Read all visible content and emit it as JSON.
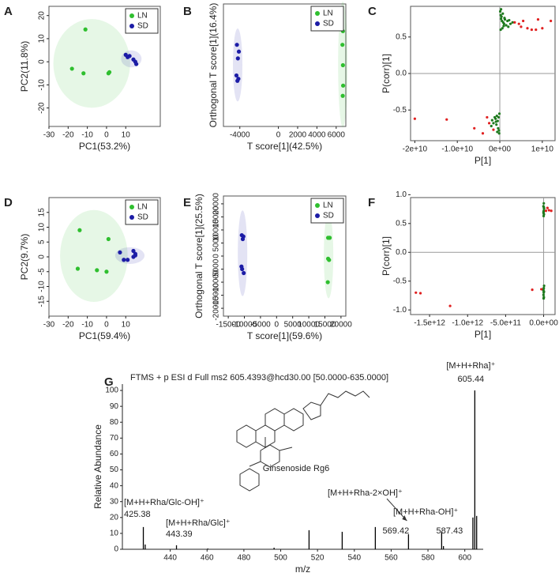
{
  "chart_data": [
    {
      "type": "scatter",
      "panel": "A",
      "xlabel": "PC1(53.2%)",
      "ylabel": "PC2(11.8%)",
      "ellipses": true,
      "legend": "upper right",
      "xlim": [
        -30,
        28
      ],
      "xticks": [
        -30,
        -20,
        -10,
        0,
        10
      ],
      "ylim": [
        -28,
        24
      ],
      "yticks": [
        20,
        10,
        0,
        -10,
        -20
      ],
      "series": [
        {
          "name": "LN",
          "color": "#2fbf2f",
          "x": [
            -11,
            -18,
            -12,
            1,
            1.5
          ],
          "values": [
            14,
            -3,
            -5,
            -5,
            -4.5
          ]
        },
        {
          "name": "SD",
          "color": "#1c1ca6",
          "x": [
            10,
            12,
            11,
            15,
            15.5,
            14
          ],
          "values": [
            3,
            2.5,
            2,
            0,
            -1,
            1
          ]
        }
      ]
    },
    {
      "type": "scatter",
      "panel": "B",
      "xlabel": "T score[1](42.5%)",
      "ylabel": "Orthogonal T score[1](16.4%)",
      "ellipses": true,
      "legend": "upper right",
      "xlim": [
        -5700,
        7000
      ],
      "xticks": [
        -4000,
        0,
        2000,
        4000,
        6000
      ],
      "ylim": [
        -9,
        9
      ],
      "series": [
        {
          "name": "LN",
          "color": "#2fbf2f",
          "x": [
            6700,
            6650,
            6700,
            6720,
            6680
          ],
          "values": [
            5,
            3,
            0,
            -3,
            -4.5
          ]
        },
        {
          "name": "SD",
          "color": "#1c1ca6",
          "x": [
            -4300,
            -4100,
            -4200,
            -4350,
            -4150,
            -4250
          ],
          "values": [
            3,
            2,
            1,
            -1.5,
            -2,
            -2.3
          ]
        }
      ]
    },
    {
      "type": "scatter",
      "panel": "C",
      "xlabel": "P[1]",
      "ylabel": "P(corr)[1]",
      "zero_lines": true,
      "xlim": [
        -21000000000.0,
        13000000000.0
      ],
      "xticks": [
        {
          "value": -20000000000.0,
          "label": "-2e+10"
        },
        {
          "value": -10000000000.0,
          "label": "-1.0e+10"
        },
        {
          "value": 0,
          "label": "0e+00"
        },
        {
          "value": 10000000000.0,
          "label": "1e+10"
        }
      ],
      "ylim": [
        -0.92,
        0.92
      ],
      "yticks": [
        0.5,
        {
          "value": 0,
          "label": "0.0"
        },
        -0.5
      ],
      "series": [
        {
          "color": "#1e7a1e",
          "x": [
            100000000.0,
            200000000.0,
            300000000.0,
            500000000.0,
            800000000.0,
            1000000000.0,
            1500000000.0,
            2000000000.0,
            400000000.0,
            600000000.0,
            1200000000.0,
            2500000000.0,
            3000000000.0,
            200000000.0,
            700000000.0,
            1800000000.0,
            900000000.0,
            300000000.0,
            1100000000.0,
            2200000000.0,
            -100000000.0,
            -300000000.0,
            -500000000.0,
            -800000000.0,
            -1000000000.0,
            -1500000000.0,
            -2000000000.0,
            -200000000.0,
            -600000000.0,
            -1200000000.0,
            -400000000.0,
            -900000000.0,
            -150000000.0,
            -700000000.0,
            -1800000000.0
          ],
          "values": [
            0.85,
            0.8,
            0.75,
            0.72,
            0.7,
            0.68,
            0.66,
            0.64,
            0.78,
            0.62,
            0.74,
            0.68,
            0.7,
            0.6,
            0.82,
            0.72,
            0.65,
            0.88,
            0.76,
            0.73,
            -0.55,
            -0.6,
            -0.65,
            -0.7,
            -0.62,
            -0.68,
            -0.72,
            -0.78,
            -0.8,
            -0.6,
            -0.75,
            -0.66,
            -0.82,
            -0.58,
            -0.64
          ]
        },
        {
          "color": "#e02020",
          "x": [
            3500000000.0,
            4500000000.0,
            5500000000.0,
            6500000000.0,
            7500000000.0,
            8500000000.0,
            10000000000.0,
            12000000000.0,
            5000000000.0,
            9000000000.0,
            -20000000000.0,
            -12500000000.0,
            -6000000000.0,
            -4000000000.0,
            -3000000000.0,
            -2500000000.0,
            -1500000000.0
          ],
          "values": [
            0.7,
            0.68,
            0.72,
            0.62,
            0.6,
            0.6,
            0.62,
            0.72,
            0.64,
            0.74,
            -0.62,
            -0.63,
            -0.75,
            -0.82,
            -0.6,
            -0.68,
            -0.77
          ]
        }
      ]
    },
    {
      "type": "scatter",
      "panel": "D",
      "xlabel": "PC1(59.4%)",
      "ylabel": "PC2(9.7%)",
      "ellipses": true,
      "legend": "upper right",
      "xlim": [
        -30,
        28
      ],
      "xticks": [
        -30,
        -20,
        -10,
        0,
        10
      ],
      "ylim": [
        -20,
        20
      ],
      "yticks": [
        15,
        10,
        5,
        0,
        -5,
        -10,
        -15
      ],
      "series": [
        {
          "name": "LN",
          "color": "#2fbf2f",
          "x": [
            -14,
            -15,
            -5,
            0,
            1
          ],
          "values": [
            9,
            -4,
            -4.5,
            -5,
            6
          ]
        },
        {
          "name": "SD",
          "color": "#1c1ca6",
          "x": [
            7,
            9,
            11,
            14,
            15,
            14,
            15
          ],
          "values": [
            1.5,
            -1,
            -1,
            2,
            1,
            0,
            0.5
          ]
        }
      ]
    },
    {
      "type": "scatter",
      "panel": "E",
      "xlabel": "T score[1](59.6%)",
      "ylabel": "Orthogonal T score[1](25.5%)",
      "ellipses": true,
      "legend": "upper right",
      "xlim": [
        -16500,
        21500
      ],
      "xticks": [
        -15000,
        -10000,
        -5000,
        0,
        5000,
        10000,
        15000,
        20000
      ],
      "ylim": [
        -23000,
        23000
      ],
      "yticks": [
        20000,
        15000,
        10000,
        5000,
        0,
        -5000,
        -10000,
        -15000,
        -20000
      ],
      "series": [
        {
          "name": "LN",
          "color": "#2fbf2f",
          "x": [
            16000,
            16500,
            16000,
            16300,
            15900
          ],
          "values": [
            7000,
            7000,
            -1000,
            -1500,
            -10000
          ]
        },
        {
          "name": "SD",
          "color": "#1c1ca6",
          "x": [
            -10800,
            -10300,
            -10500,
            -10900,
            -10700,
            -10200
          ],
          "values": [
            8000,
            7500,
            6500,
            -4000,
            -5000,
            -6500
          ]
        }
      ]
    },
    {
      "type": "scatter",
      "panel": "F",
      "xlabel": "P[1]",
      "ylabel": "P(corr)[1]",
      "zero_lines": true,
      "xlim": [
        -1750000000000.0,
        150000000000.0
      ],
      "xticks": [
        {
          "value": -1500000000000.0,
          "label": "-1.5e+12"
        },
        {
          "value": -1000000000000.0,
          "label": "-1.0e+12"
        },
        {
          "value": -500000000000.0,
          "label": "-5.0e+11"
        },
        {
          "value": 0,
          "label": "0.0e+00"
        }
      ],
      "ylim": [
        -1.08,
        0.95
      ],
      "yticks": [
        {
          "value": 1,
          "label": "1.0"
        },
        0.5,
        {
          "value": 0,
          "label": "0.0"
        },
        -0.5,
        {
          "value": -1,
          "label": "-1.0"
        }
      ],
      "series": [
        {
          "color": "#1e7a1e",
          "x": [
            2000000000.0,
            -3000000000.0,
            5000000000.0,
            1000000000.0,
            -2000000000.0,
            4000000000.0,
            0,
            3000000000.0,
            -1000000000.0,
            6000000000.0,
            2000000000.0,
            -4000000000.0,
            1000000000.0,
            -2000000000.0,
            3000000000.0,
            0,
            4000000000.0,
            -3000000000.0
          ],
          "values": [
            0.85,
            0.8,
            0.76,
            0.72,
            0.7,
            0.66,
            0.63,
            0.78,
            0.68,
            -0.58,
            -0.62,
            -0.66,
            -0.7,
            -0.74,
            -0.78,
            -0.8,
            -0.68,
            -0.64
          ]
        },
        {
          "color": "#e02020",
          "x": [
            -1680000000000.0,
            -1620000000000.0,
            -1230000000000.0,
            -150000000000.0,
            30000000000.0,
            70000000000.0,
            100000000000.0,
            50000000000.0,
            -30000000000.0
          ],
          "values": [
            -0.7,
            -0.71,
            -0.93,
            -0.65,
            0.72,
            0.73,
            0.72,
            0.77,
            -0.64
          ]
        }
      ]
    },
    {
      "type": "bar",
      "panel": "G",
      "title": "FTMS + p ESI d Full ms2 605.4393@hcd30.00 [50.0000-635.0000]",
      "xlabel": "m/z",
      "ylabel": "Relative Abundance",
      "compound": "Ginsenoside Rg6",
      "color": "#000000",
      "xlim": [
        414,
        610
      ],
      "xticks": [
        440,
        460,
        480,
        500,
        520,
        540,
        560,
        580,
        600
      ],
      "ylim": [
        0,
        104
      ],
      "yticks": [
        0,
        10,
        20,
        30,
        40,
        50,
        60,
        70,
        80,
        90,
        100
      ],
      "x": [
        425.38,
        426.4,
        443.39,
        460.4,
        496.4,
        515.4,
        533.4,
        551.4,
        569.42,
        587.43,
        588.4,
        604.4,
        605.44,
        606.44
      ],
      "values": [
        14,
        3,
        2.5,
        0.5,
        1,
        12,
        11,
        14,
        9.5,
        11,
        2,
        20,
        100,
        21
      ],
      "annotations": [
        {
          "text": "[M+H+Rha]⁺",
          "x": 605.44
        },
        {
          "text": "[M+H+Rha/Glc-OH]⁺",
          "x": 425.38
        },
        {
          "text": "[M+H+Rha/Glc]⁺",
          "x": 443.39
        },
        {
          "text": "[M+H+Rha-2×OH]⁺",
          "x": 569.42
        },
        {
          "text": "[M+H+Rha-OH]⁺",
          "x": 587.43
        }
      ]
    }
  ]
}
